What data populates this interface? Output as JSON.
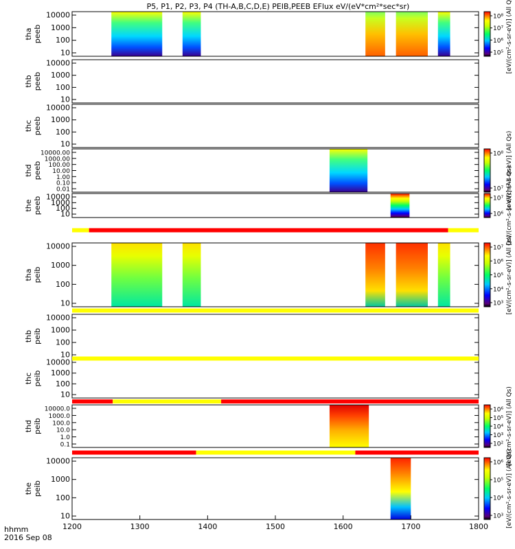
{
  "chart_data": {
    "type": "heatmap",
    "title": "P5, P1, P2, P3, P4 (TH-A,B,C,D,E) PEIB,PEEB EFlux eV/(eV*cm²*sec*sr)",
    "x_range": [
      1200,
      1800
    ],
    "x_ticks": [
      "1200",
      "1300",
      "1400",
      "1500",
      "1600",
      "1700",
      "1800"
    ],
    "x_label_lines": [
      "hhmm",
      "2016 Sep 08"
    ],
    "panels": [
      {
        "probe": "tha",
        "product": "peeb",
        "y_ticks": [
          "10",
          "100",
          "1000",
          "10000"
        ],
        "colorbar": {
          "ticks": [
            "10⁵",
            "10⁶",
            "10⁷",
            "10⁸"
          ],
          "label": "[eV/(cm²-s-sr-eV)] (All Qs)"
        },
        "intervals": [
          [
            1258,
            1333
          ],
          [
            1363,
            1390
          ],
          [
            1633,
            1662
          ],
          [
            1678,
            1725
          ],
          [
            1740,
            1758
          ]
        ]
      },
      {
        "probe": "thb",
        "product": "peeb",
        "y_ticks": [
          "10",
          "100",
          "1000",
          "10000"
        ],
        "intervals": []
      },
      {
        "probe": "thc",
        "product": "peeb",
        "y_ticks": [
          "10",
          "100",
          "1000",
          "10000"
        ],
        "intervals": []
      },
      {
        "probe": "thd",
        "product": "peeb",
        "y_ticks": [
          "0.01",
          "0.10",
          "1.00",
          "10.00",
          "100.00",
          "1000.00",
          "10000.00"
        ],
        "colorbar": {
          "ticks": [
            "10⁷",
            "10⁸"
          ],
          "label": "[eV/(cm²-s-sr-eV)] (All Qs)"
        },
        "intervals": [
          [
            1580,
            1636
          ]
        ]
      },
      {
        "probe": "the",
        "product": "peeb",
        "y_ticks": [
          "10",
          "100",
          "1000",
          "10000"
        ],
        "colorbar": {
          "ticks": [
            "10⁶",
            "10⁷"
          ],
          "label": "[eV/(cm²-s-sr-eV)] (All Qs)"
        },
        "intervals": [
          [
            1670,
            1698
          ]
        ]
      },
      {
        "probe": "tha",
        "product": "peib",
        "y_ticks": [
          "10",
          "100",
          "1000",
          "10000"
        ],
        "colorbar": {
          "ticks": [
            "10³",
            "10⁴",
            "10⁵",
            "10⁶",
            "10⁷"
          ],
          "label": "[eV/(cm²-s-sr-eV)] (All Qs)"
        },
        "intervals": [
          [
            1258,
            1333
          ],
          [
            1363,
            1390
          ],
          [
            1633,
            1662
          ],
          [
            1678,
            1725
          ],
          [
            1740,
            1758
          ]
        ]
      },
      {
        "probe": "thb",
        "product": "peib",
        "y_ticks": [
          "10",
          "100",
          "1000",
          "10000"
        ],
        "intervals": []
      },
      {
        "probe": "thc",
        "product": "peib",
        "y_ticks": [
          "10",
          "100",
          "1000",
          "10000"
        ],
        "intervals": []
      },
      {
        "probe": "thd",
        "product": "peib",
        "y_ticks": [
          "0.1",
          "1.0",
          "10.0",
          "100.0",
          "1000.0",
          "10000.0"
        ],
        "colorbar": {
          "ticks": [
            "10²",
            "10³",
            "10⁴",
            "10⁵",
            "10⁶"
          ],
          "label": "[eV/(cm²-s-sr-eV)] (All Qs)"
        },
        "intervals": [
          [
            1580,
            1638
          ]
        ]
      },
      {
        "probe": "the",
        "product": "peib",
        "y_ticks": [
          "10",
          "100",
          "1000",
          "10000"
        ],
        "colorbar": {
          "ticks": [
            "10³",
            "10⁴",
            "10⁵",
            "10⁶"
          ],
          "label": "[eV/(cm²-s-sr-eV)] (All Qs)"
        },
        "intervals": [
          [
            1670,
            1700
          ]
        ]
      }
    ],
    "mode_bars": [
      {
        "after_panel": 4,
        "segments": [
          [
            1200,
            1225,
            "#ffff00"
          ],
          [
            1225,
            1755,
            "#ff0000"
          ],
          [
            1755,
            1800,
            "#ffff00"
          ]
        ]
      },
      {
        "after_panel": 5,
        "segments": [
          [
            1200,
            1800,
            "#ffff00"
          ]
        ]
      },
      {
        "after_panel": 6,
        "segments": [
          [
            1200,
            1800,
            "#ffff00"
          ]
        ]
      },
      {
        "after_panel": 7,
        "segments": [
          [
            1200,
            1260,
            "#ff0000"
          ],
          [
            1260,
            1420,
            "#ffff00"
          ],
          [
            1420,
            1800,
            "#ff0000"
          ]
        ]
      },
      {
        "after_panel": 8,
        "segments": [
          [
            1200,
            1383,
            "#ff0000"
          ],
          [
            1383,
            1618,
            "#ffff00"
          ],
          [
            1618,
            1800,
            "#ff0000"
          ]
        ]
      }
    ]
  }
}
